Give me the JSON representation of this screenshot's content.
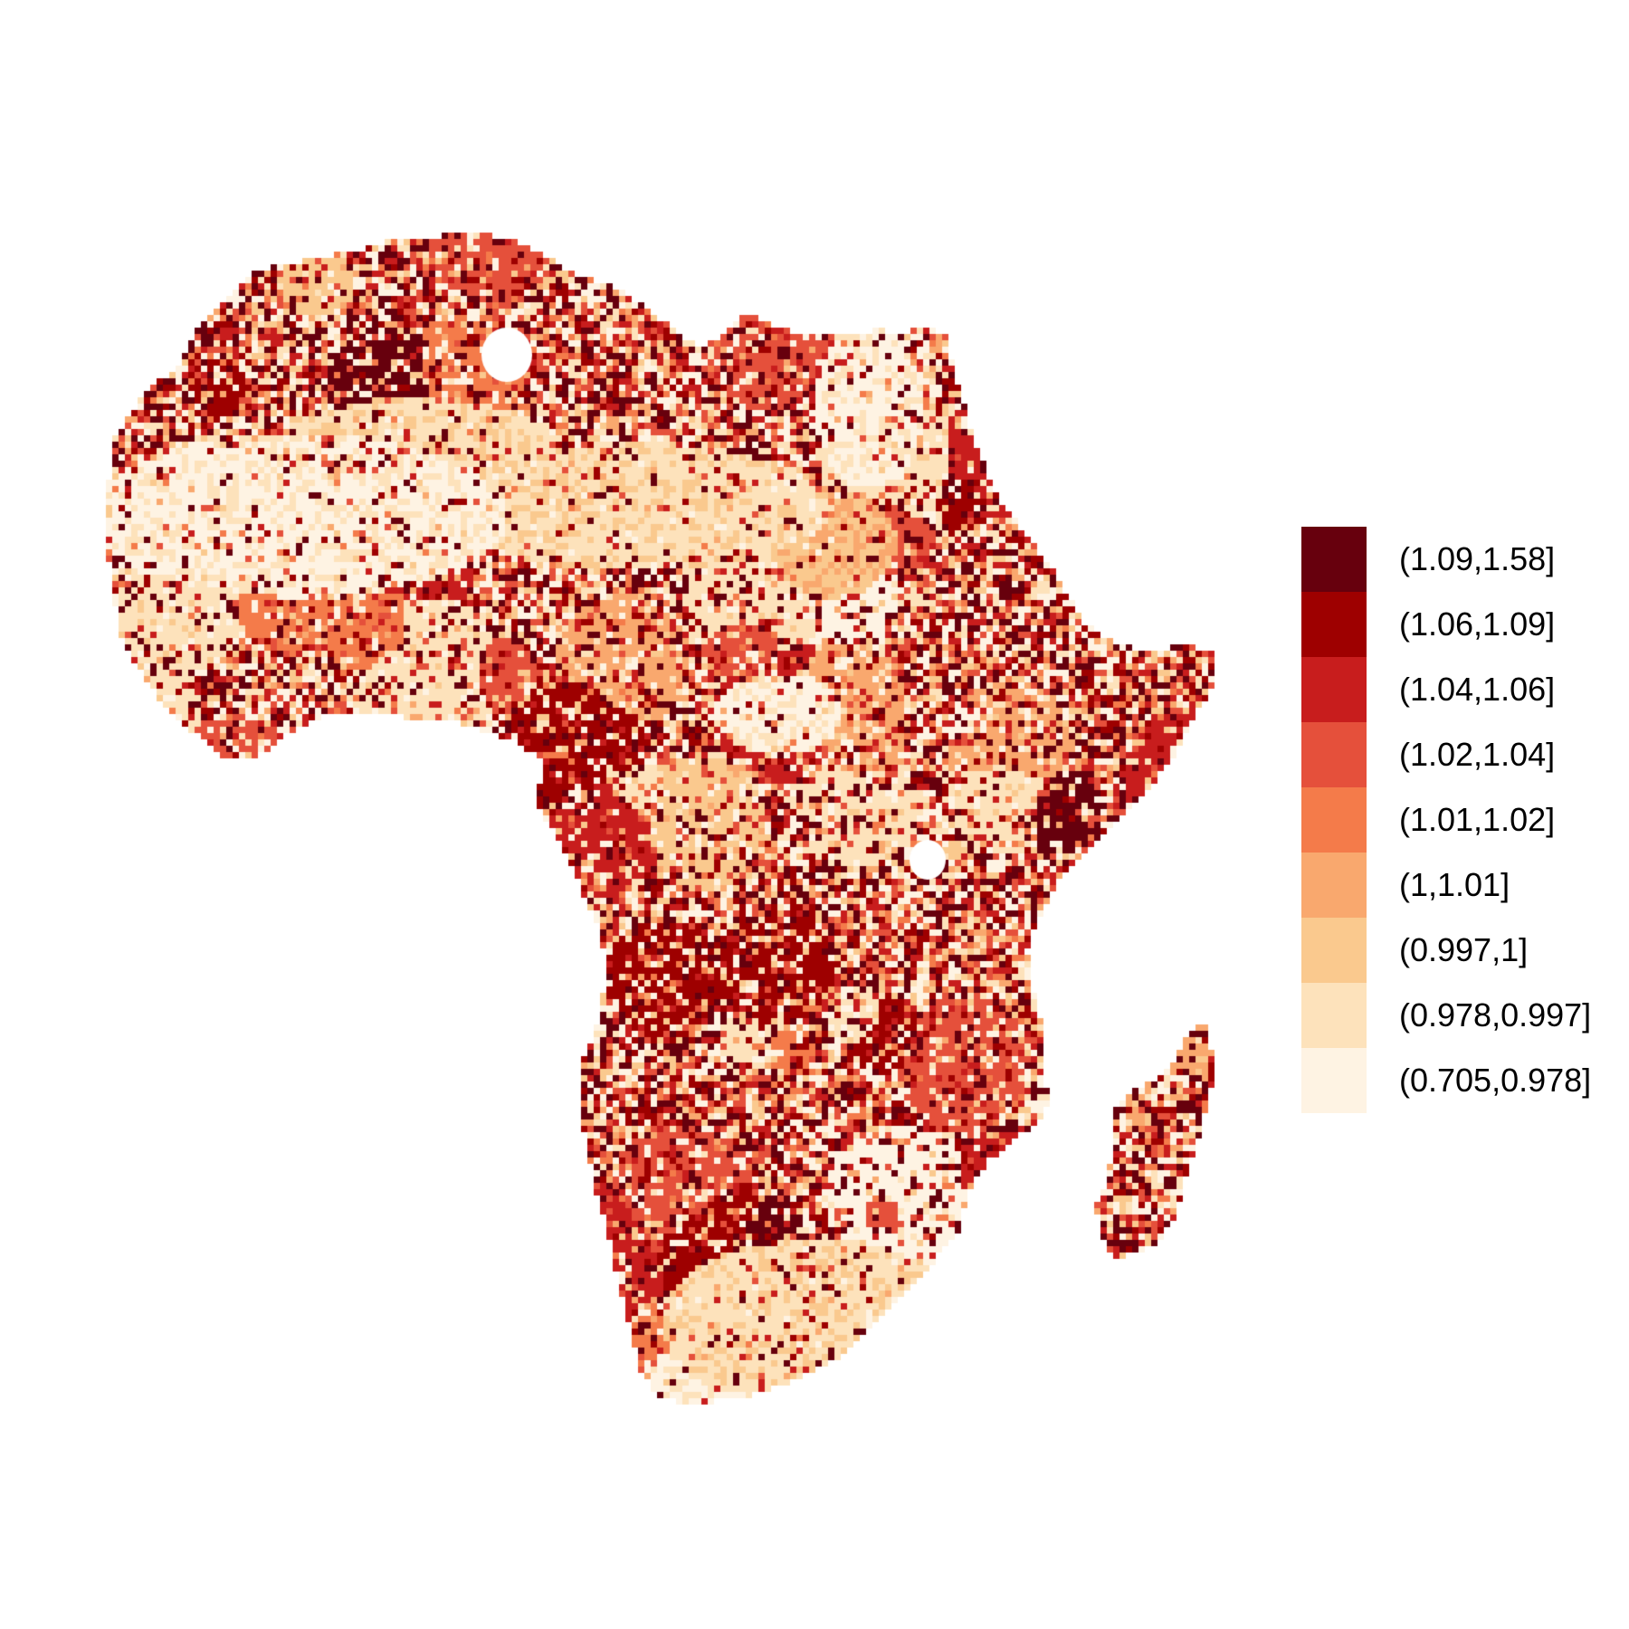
{
  "map": {
    "region": "Africa",
    "legend": {
      "classes": [
        {
          "label": "(1.09,1.58]",
          "color": "#67000d"
        },
        {
          "label": "(1.06,1.09]",
          "color": "#9e0000"
        },
        {
          "label": "(1.04,1.06]",
          "color": "#c81d1d"
        },
        {
          "label": "(1.02,1.04]",
          "color": "#e5503b"
        },
        {
          "label": "(1.01,1.02]",
          "color": "#f47b4a"
        },
        {
          "label": "(1,1.01]",
          "color": "#f9a86e"
        },
        {
          "label": "(0.997,1]",
          "color": "#fac98e"
        },
        {
          "label": "(0.978,0.997]",
          "color": "#fde2bb"
        },
        {
          "label": "(0.705,0.978]",
          "color": "#fef3e3"
        }
      ]
    }
  }
}
